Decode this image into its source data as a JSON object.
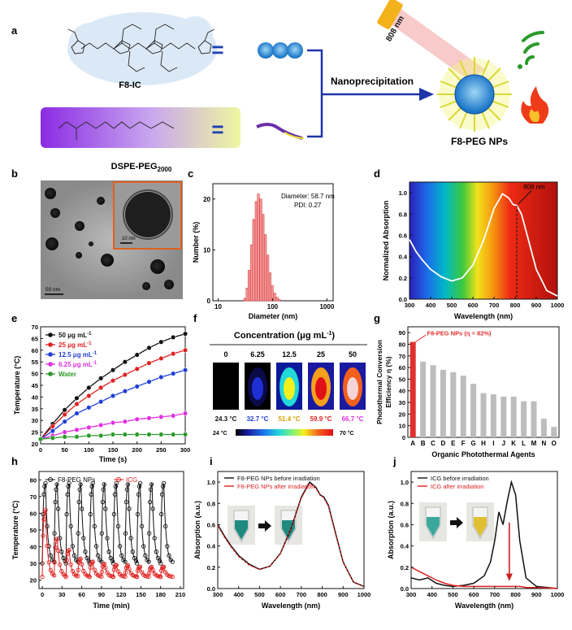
{
  "panel_labels": [
    "a",
    "b",
    "c",
    "d",
    "e",
    "f",
    "g",
    "h",
    "i",
    "j"
  ],
  "panel_a": {
    "molecule_name": "F8-IC",
    "polymer_name": "DSPE-PEG",
    "polymer_sub": "2000",
    "process": "Nanoprecipitation",
    "product": "F8-PEG NPs",
    "laser": "808 nm",
    "equals": "="
  },
  "panel_b": {
    "scale_main": "50 nm",
    "scale_inset": "10 nm"
  },
  "panel_c": {
    "chart_data": {
      "type": "bar",
      "xlabel": "Diameter (nm)",
      "ylabel": "Number (%)",
      "x_scale": "log",
      "xticks": [
        "10",
        "100",
        "1000"
      ],
      "yticks": [
        "0",
        "10",
        "20"
      ],
      "annotation_1": "Diameter: 58.7 nm",
      "annotation_2": "PDI: 0.27",
      "bin_centers": [
        31,
        34,
        37,
        41,
        45,
        50,
        55,
        61,
        67,
        74,
        82,
        90,
        99,
        110,
        121,
        133
      ],
      "values": [
        0.5,
        2.5,
        6,
        11,
        16,
        19.5,
        21,
        20,
        17,
        13,
        9,
        5.5,
        3,
        1.5,
        0.7,
        0.3
      ]
    }
  },
  "panel_d": {
    "chart_data": {
      "type": "line",
      "xlabel": "Wavelength (nm)",
      "ylabel": "Normalized Absorption",
      "xticks": [
        "300",
        "400",
        "500",
        "600",
        "700",
        "800",
        "900",
        "1000"
      ],
      "yticks": [
        "0.0",
        "0.2",
        "0.4",
        "0.6",
        "0.8",
        "1.0"
      ],
      "annotation": "808 nm",
      "x": [
        300,
        330,
        360,
        400,
        450,
        500,
        550,
        600,
        650,
        700,
        740,
        770,
        790,
        808,
        830,
        860,
        900,
        950,
        1000
      ],
      "y": [
        0.56,
        0.45,
        0.37,
        0.28,
        0.21,
        0.17,
        0.2,
        0.32,
        0.55,
        0.85,
        0.99,
        0.95,
        0.89,
        0.88,
        0.8,
        0.58,
        0.28,
        0.08,
        0.03
      ]
    }
  },
  "panel_e": {
    "chart_data": {
      "type": "line",
      "xlabel": "Time (s)",
      "ylabel": "Temperature (°C)",
      "xticks": [
        "0",
        "50",
        "100",
        "150",
        "200",
        "250",
        "300"
      ],
      "yticks": [
        "20",
        "25",
        "30",
        "35",
        "40",
        "45",
        "50",
        "55",
        "60",
        "65",
        "70"
      ],
      "x": [
        0,
        25,
        50,
        75,
        100,
        125,
        150,
        175,
        200,
        225,
        250,
        275,
        300
      ],
      "series": [
        {
          "name": "50 μg mL",
          "color": "#111111",
          "values": [
            22,
            28.5,
            34.5,
            39.5,
            44,
            48,
            51.5,
            55,
            58,
            61,
            63.5,
            65.5,
            67
          ]
        },
        {
          "name": "25 μg mL",
          "color": "#e02020",
          "values": [
            22,
            27.5,
            32.5,
            37,
            40.5,
            44,
            47,
            49.5,
            52,
            54.5,
            56.5,
            58.5,
            60
          ]
        },
        {
          "name": "12.5 μg mL",
          "color": "#1f3fd6",
          "values": [
            22,
            25.5,
            29.5,
            33,
            35.5,
            38,
            40.5,
            42.5,
            44.5,
            46.5,
            48.5,
            50,
            51.5
          ]
        },
        {
          "name": "6.25 μg mL",
          "color": "#e030e0",
          "values": [
            22,
            23.5,
            25,
            26,
            27,
            28,
            29,
            29.5,
            30.5,
            31,
            31.5,
            32,
            33
          ]
        },
        {
          "name": "Water",
          "color": "#2a9a2a",
          "values": [
            22,
            22.5,
            23,
            23,
            23.5,
            23.5,
            24,
            24,
            24,
            24,
            24,
            24,
            24
          ]
        }
      ]
    }
  },
  "panel_f": {
    "title": "Concentration (μg mL",
    "title_sup": "-1",
    "title_end": ")",
    "columns": [
      "0",
      "6.25",
      "12.5",
      "25",
      "50"
    ],
    "temps": [
      "24.3 °C",
      "32.7 °C",
      "51.4 °C",
      "59.9 °C",
      "66.7 °C"
    ],
    "temp_colors": [
      "#111111",
      "#1f3fd6",
      "#d4a000",
      "#e02020",
      "#e030e0"
    ],
    "scale_min": "24 °C",
    "scale_max": "70 °C"
  },
  "panel_g": {
    "chart_data": {
      "type": "bar",
      "xlabel": "Organic Photothermal Agents",
      "ylabel": "Photothermal Conversion Efficiency η (%)",
      "ylabel_1": "Photothermal Conversion",
      "ylabel_2": "Efficiency η (%)",
      "annotation": "F8-PEG NPs (η = 82%)",
      "yticks": [
        "0",
        "10",
        "20",
        "30",
        "40",
        "50",
        "60",
        "70",
        "80",
        "90"
      ],
      "categories": [
        "A",
        "B",
        "C",
        "D",
        "E",
        "F",
        "G",
        "H",
        "I",
        "J",
        "K",
        "L",
        "M",
        "N",
        "O"
      ],
      "values": [
        82,
        65,
        62,
        58,
        56,
        53,
        46,
        38,
        37,
        35,
        35,
        31,
        31,
        16,
        9
      ]
    }
  },
  "panel_h": {
    "chart_data": {
      "type": "line",
      "xlabel": "Time (min)",
      "ylabel": "Temperature (°C)",
      "xticks": [
        "0",
        "30",
        "60",
        "90",
        "120",
        "150",
        "180",
        "210"
      ],
      "yticks": [
        "20",
        "30",
        "40",
        "50",
        "60",
        "70",
        "80"
      ],
      "cycles": 11,
      "series": [
        {
          "name": "F8-PEG NPs",
          "color": "#111111",
          "peak": 78,
          "base": 30
        },
        {
          "name": "ICG",
          "color": "#e02020",
          "peaks": [
            62,
            45,
            38,
            33,
            31,
            30,
            29,
            29,
            28,
            28,
            28
          ],
          "base": 22
        }
      ]
    }
  },
  "panel_i": {
    "chart_data": {
      "type": "line",
      "xlabel": "Wavelength (nm)",
      "ylabel": "Absorption (a.u.)",
      "xticks": [
        "300",
        "400",
        "500",
        "600",
        "700",
        "800",
        "900",
        "1000"
      ],
      "yticks": [
        "0.0",
        "0.2",
        "0.4",
        "0.6",
        "0.8",
        "1.0"
      ],
      "x": [
        300,
        330,
        360,
        400,
        450,
        500,
        550,
        600,
        650,
        700,
        740,
        770,
        790,
        808,
        830,
        860,
        900,
        950,
        1000
      ],
      "series": [
        {
          "name": "F8-PEG NPs before irradiation",
          "color": "#111111",
          "values": [
            0.6,
            0.5,
            0.41,
            0.31,
            0.23,
            0.18,
            0.21,
            0.33,
            0.56,
            0.86,
            1.0,
            0.95,
            0.88,
            0.86,
            0.78,
            0.55,
            0.25,
            0.06,
            0.02
          ]
        },
        {
          "name": "F8-PEG NPs after irradiation",
          "color": "#e02020",
          "values": [
            0.59,
            0.49,
            0.4,
            0.3,
            0.22,
            0.18,
            0.21,
            0.33,
            0.56,
            0.85,
            0.99,
            0.94,
            0.88,
            0.85,
            0.77,
            0.54,
            0.25,
            0.06,
            0.02
          ]
        }
      ]
    }
  },
  "panel_j": {
    "chart_data": {
      "type": "line",
      "xlabel": "Wavelength (nm)",
      "ylabel": "Absorption (a.u.)",
      "xticks": [
        "300",
        "400",
        "500",
        "600",
        "700",
        "800",
        "900",
        "1000"
      ],
      "yticks": [
        "0.0",
        "0.2",
        "0.4",
        "0.6",
        "0.8",
        "1.0"
      ],
      "x": [
        300,
        340,
        380,
        420,
        460,
        500,
        550,
        600,
        650,
        680,
        700,
        720,
        740,
        760,
        780,
        800,
        820,
        850,
        900,
        1000
      ],
      "series": [
        {
          "name": "ICG before irradiation",
          "color": "#111111",
          "values": [
            0.1,
            0.08,
            0.1,
            0.05,
            0.03,
            0.02,
            0.03,
            0.05,
            0.12,
            0.25,
            0.45,
            0.72,
            0.6,
            0.82,
            1.0,
            0.88,
            0.45,
            0.1,
            0.02,
            0.0
          ]
        },
        {
          "name": "ICG after irradiation",
          "color": "#e02020",
          "values": [
            0.2,
            0.16,
            0.12,
            0.08,
            0.05,
            0.03,
            0.02,
            0.02,
            0.02,
            0.02,
            0.02,
            0.02,
            0.02,
            0.02,
            0.02,
            0.02,
            0.02,
            0.01,
            0.01,
            0.0
          ]
        }
      ]
    }
  }
}
